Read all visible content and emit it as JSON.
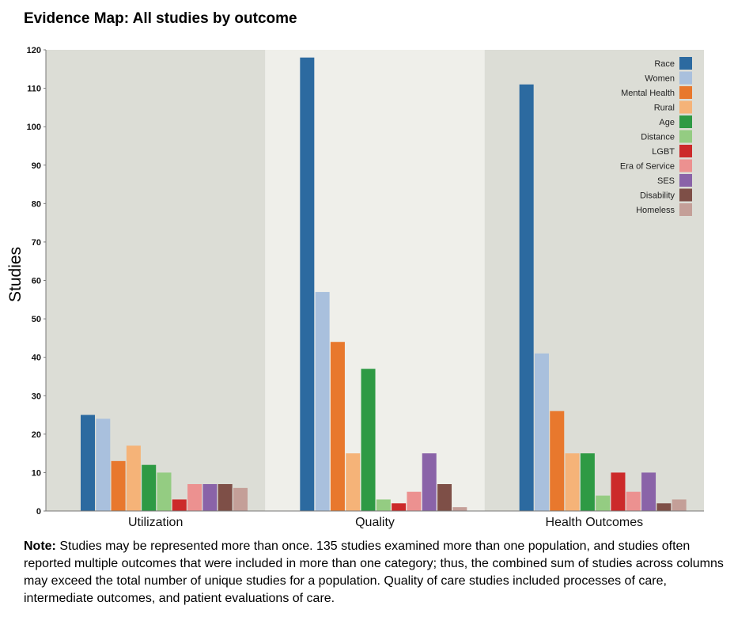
{
  "title": "Evidence Map: All studies by outcome",
  "note": {
    "label": "Note:",
    "text": "Studies may be represented more than once. 135 studies examined more than one population, and studies often reported multiple outcomes that were included in more than one category; thus, the combined sum of studies across columns may exceed the total number of unique studies for a population. Quality of care studies included processes of care, intermediate outcomes, and patient evaluations of care."
  },
  "chart_data": {
    "type": "bar",
    "title": "Evidence Map: All studies by outcome",
    "xlabel": "",
    "ylabel": "Studies",
    "ylim": [
      0,
      120
    ],
    "yticks": [
      0,
      10,
      20,
      30,
      40,
      50,
      60,
      70,
      80,
      90,
      100,
      110,
      120
    ],
    "grid": false,
    "legend": "top-right",
    "panel_colors": [
      "#dcddd6",
      "#efefea",
      "#dcddd6"
    ],
    "categories": [
      "Utilization",
      "Quality",
      "Health Outcomes"
    ],
    "series": [
      {
        "name": "Race",
        "color": "#2c6aa0",
        "values": [
          25,
          118,
          111
        ]
      },
      {
        "name": "Women",
        "color": "#a9c0dd",
        "values": [
          24,
          57,
          41
        ]
      },
      {
        "name": "Mental Health",
        "color": "#e8782d",
        "values": [
          13,
          44,
          26
        ]
      },
      {
        "name": "Rural",
        "color": "#f5b378",
        "values": [
          17,
          15,
          15
        ]
      },
      {
        "name": "Age",
        "color": "#2e9a44",
        "values": [
          12,
          37,
          15
        ]
      },
      {
        "name": "Distance",
        "color": "#94cc82",
        "values": [
          10,
          3,
          4
        ]
      },
      {
        "name": "LGBT",
        "color": "#cc2a2a",
        "values": [
          3,
          2,
          10
        ]
      },
      {
        "name": "Era of Service",
        "color": "#ec9190",
        "values": [
          7,
          5,
          5
        ]
      },
      {
        "name": "SES",
        "color": "#8a63a8",
        "values": [
          7,
          15,
          10
        ]
      },
      {
        "name": "Disability",
        "color": "#7e4f47",
        "values": [
          7,
          7,
          2
        ]
      },
      {
        "name": "Homeless",
        "color": "#c49f98",
        "values": [
          6,
          1,
          3
        ]
      }
    ]
  }
}
